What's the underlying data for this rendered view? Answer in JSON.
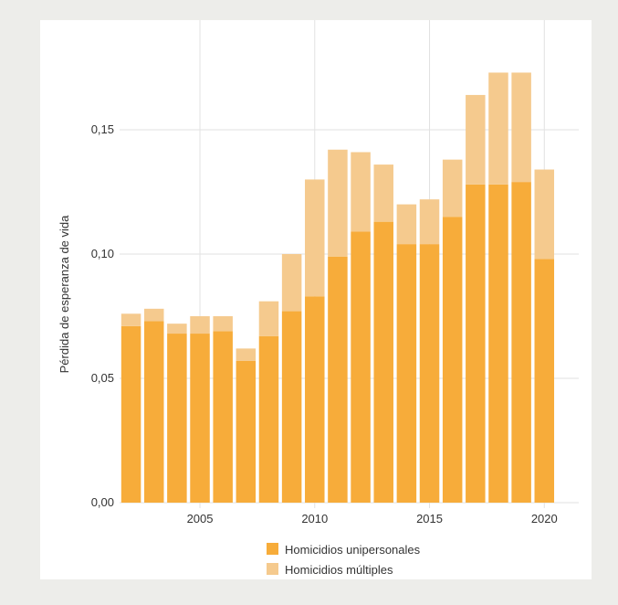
{
  "chart_data": {
    "type": "bar",
    "stacked": true,
    "x": [
      2002,
      2003,
      2004,
      2005,
      2006,
      2007,
      2008,
      2009,
      2010,
      2011,
      2012,
      2013,
      2014,
      2015,
      2016,
      2017,
      2018,
      2019,
      2020
    ],
    "series": [
      {
        "name": "Homicidios unipersonales",
        "color": "#f7ac3a",
        "values": [
          0.071,
          0.073,
          0.068,
          0.068,
          0.069,
          0.057,
          0.067,
          0.077,
          0.083,
          0.099,
          0.109,
          0.113,
          0.104,
          0.104,
          0.115,
          0.128,
          0.128,
          0.129,
          0.098
        ]
      },
      {
        "name": "Homicidios múltiples",
        "color": "#f5ca8e",
        "values": [
          0.005,
          0.005,
          0.004,
          0.007,
          0.006,
          0.005,
          0.014,
          0.023,
          0.047,
          0.043,
          0.032,
          0.023,
          0.016,
          0.018,
          0.023,
          0.036,
          0.045,
          0.044,
          0.036
        ]
      }
    ],
    "ylabel": "Pérdida de esperanza de vida",
    "xlabel": "",
    "ylim": [
      0,
      0.18
    ],
    "yticks": [
      0,
      0.05,
      0.1,
      0.15
    ],
    "ytick_labels": [
      "0,00",
      "0,05",
      "0,10",
      "0,15"
    ],
    "xticks": [
      2005,
      2010,
      2015,
      2020
    ],
    "xtick_labels": [
      "2005",
      "2010",
      "2015",
      "2020"
    ],
    "xlim": [
      2001.5,
      2021.5
    ],
    "grid": true,
    "legend_position": "bottom"
  }
}
